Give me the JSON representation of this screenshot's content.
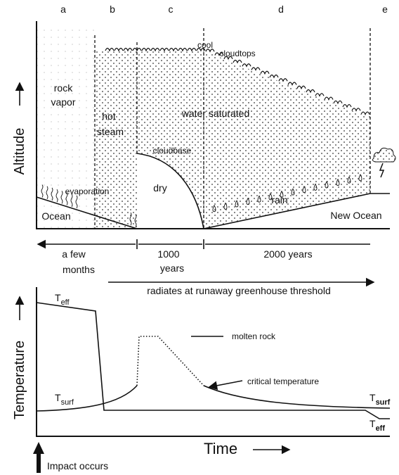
{
  "phases": [
    "a",
    "b",
    "c",
    "d",
    "e"
  ],
  "top_panel": {
    "y_axis_label": "Altitude",
    "regions": {
      "rock_vapor": [
        "rock",
        "vapor"
      ],
      "hot_steam": [
        "hot",
        "steam"
      ],
      "water_saturated": "water saturated",
      "cool": "cool",
      "cloudtops": "cloudtops",
      "cloudbase": "cloudbase",
      "dry": "dry",
      "evaporation": "evaporation",
      "ocean": "Ocean",
      "rain": "rain",
      "new_ocean": "New Ocean"
    }
  },
  "timeline": {
    "spans": [
      [
        "a few",
        "months"
      ],
      [
        "1000",
        "years"
      ],
      [
        "2000 years"
      ]
    ],
    "runaway": "radiates at runaway greenhouse threshold"
  },
  "bottom_panel": {
    "y_axis_label": "Temperature",
    "x_axis_label": "Time",
    "curves": {
      "t_eff": {
        "symbol": "T",
        "subscript": "eff"
      },
      "t_surf": {
        "symbol": "T",
        "subscript": "surf"
      }
    },
    "annotations": {
      "molten_rock": "molten rock",
      "critical_temperature": "critical temperature"
    },
    "impact": "Impact occurs"
  }
}
